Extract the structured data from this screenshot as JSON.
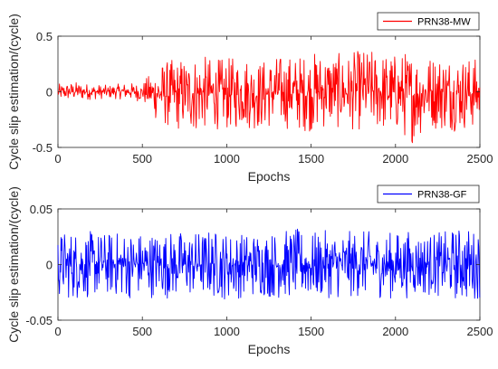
{
  "chart_data": [
    {
      "type": "line",
      "x": [
        0,
        100,
        200,
        300,
        400,
        500,
        600,
        700,
        800,
        900,
        1000,
        1100,
        1200,
        1300,
        1400,
        1500,
        1600,
        1700,
        1800,
        1900,
        2000,
        2100,
        2200,
        2300,
        2400,
        2500
      ],
      "series": [
        {
          "name": "PRN38-MW",
          "color": "#ff0000",
          "y_min": [
            -0.08,
            -0.08,
            -0.07,
            -0.06,
            -0.07,
            -0.09,
            -0.3,
            -0.35,
            -0.38,
            -0.33,
            -0.35,
            -0.33,
            -0.35,
            -0.32,
            -0.35,
            -0.36,
            -0.33,
            -0.34,
            -0.35,
            -0.36,
            -0.37,
            -0.46,
            -0.33,
            -0.36,
            -0.35,
            -0.33
          ],
          "y_max": [
            0.07,
            0.09,
            0.07,
            0.06,
            0.08,
            0.08,
            0.27,
            0.3,
            0.35,
            0.31,
            0.3,
            0.34,
            0.29,
            0.33,
            0.33,
            0.36,
            0.38,
            0.33,
            0.39,
            0.37,
            0.35,
            0.39,
            0.34,
            0.36,
            0.33,
            0.3
          ]
        }
      ],
      "xlabel": "Epochs",
      "ylabel": "Cycle slip estimation/(cycle)",
      "xlim": [
        0,
        2500
      ],
      "ylim": [
        -0.5,
        0.5
      ],
      "xticks": [
        "0",
        "500",
        "1000",
        "1500",
        "2000",
        "2500"
      ],
      "yticks": [
        "-0.5",
        "0",
        "0.5"
      ],
      "grid": false,
      "legend_position": "top-right"
    },
    {
      "type": "line",
      "x": [
        0,
        100,
        200,
        300,
        400,
        500,
        600,
        700,
        800,
        900,
        1000,
        1100,
        1200,
        1300,
        1400,
        1500,
        1600,
        1700,
        1800,
        1900,
        2000,
        2100,
        2200,
        2300,
        2400,
        2500
      ],
      "series": [
        {
          "name": "PRN38-GF",
          "color": "#0000ff",
          "y_min": [
            -0.03,
            -0.032,
            -0.03,
            -0.028,
            -0.031,
            -0.03,
            -0.03,
            -0.031,
            -0.029,
            -0.03,
            -0.032,
            -0.03,
            -0.029,
            -0.031,
            -0.03,
            -0.032,
            -0.03,
            -0.031,
            -0.029,
            -0.03,
            -0.031,
            -0.03,
            -0.028,
            -0.03,
            -0.034,
            -0.03
          ],
          "y_max": [
            0.03,
            0.032,
            0.03,
            0.029,
            0.031,
            0.03,
            0.03,
            0.031,
            0.03,
            0.032,
            0.03,
            0.029,
            0.031,
            0.03,
            0.033,
            0.029,
            0.031,
            0.03,
            0.031,
            0.029,
            0.03,
            0.031,
            0.029,
            0.03,
            0.035,
            0.03
          ]
        }
      ],
      "xlabel": "Epochs",
      "ylabel": "Cycle slip estimation/(cycle)",
      "xlim": [
        0,
        2500
      ],
      "ylim": [
        -0.05,
        0.05
      ],
      "xticks": [
        "0",
        "500",
        "1000",
        "1500",
        "2000",
        "2500"
      ],
      "yticks": [
        "-0.05",
        "0",
        "0.05"
      ],
      "grid": false,
      "legend_position": "top-right"
    }
  ]
}
